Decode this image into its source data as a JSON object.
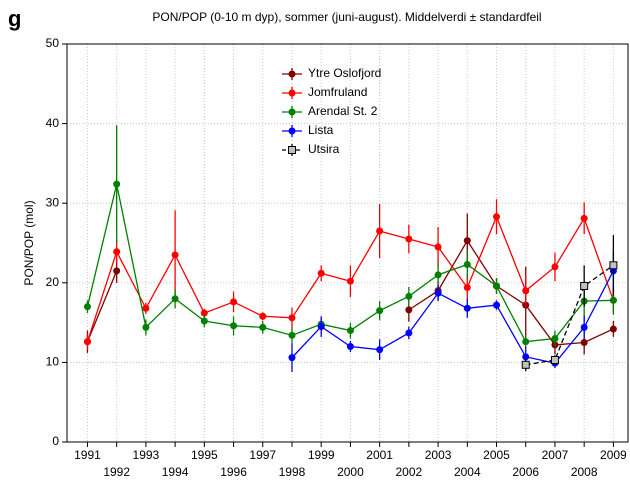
{
  "panel_label": "g",
  "chart_data": {
    "type": "line",
    "title": "PON/POP (0-10 m dyp), sommer (juni-august). Middelverdi ± standardfeil",
    "y_label": "PON/POP (mol)",
    "x": [
      1991,
      1992,
      1993,
      1994,
      1995,
      1996,
      1997,
      1998,
      1999,
      2000,
      2001,
      2002,
      2003,
      2004,
      2005,
      2006,
      2007,
      2008,
      2009
    ],
    "xlim": [
      1990.3,
      2009.5
    ],
    "xticks": [
      1991,
      1992,
      1993,
      1994,
      1995,
      1996,
      1997,
      1998,
      1999,
      2000,
      2001,
      2002,
      2003,
      2004,
      2005,
      2006,
      2007,
      2008,
      2009
    ],
    "ylim": [
      0,
      50
    ],
    "yticks": [
      0,
      10,
      20,
      30,
      40,
      50
    ],
    "grid": true,
    "legend": "top",
    "series": [
      {
        "name": "Ytre Oslofjord",
        "color": "#800000",
        "marker": "circle",
        "dashed": false,
        "values": [
          12.6,
          21.5,
          null,
          null,
          null,
          null,
          null,
          null,
          null,
          null,
          null,
          16.6,
          19.0,
          25.3,
          19.6,
          17.2,
          12.2,
          12.5,
          14.2
        ],
        "errors": [
          1.4,
          1.5,
          null,
          null,
          null,
          null,
          null,
          null,
          null,
          null,
          null,
          1.5,
          1.2,
          3.4,
          1.0,
          4.8,
          1.2,
          1.5,
          1.0
        ]
      },
      {
        "name": "Jomfruland",
        "color": "#ff0000",
        "marker": "circle",
        "dashed": false,
        "values": [
          12.6,
          23.9,
          16.8,
          23.5,
          16.2,
          17.6,
          15.8,
          15.6,
          21.2,
          20.2,
          26.5,
          25.5,
          24.5,
          19.4,
          28.3,
          19.0,
          22.0,
          28.1,
          17.8
        ],
        "errors": [
          1.0,
          1.5,
          0.7,
          5.6,
          0.5,
          1.3,
          0.5,
          1.3,
          1.0,
          2.0,
          3.4,
          1.8,
          2.5,
          1.5,
          2.2,
          2.0,
          1.8,
          2.0,
          1.5
        ]
      },
      {
        "name": "Arendal St. 2",
        "color": "#008000",
        "marker": "circle",
        "dashed": false,
        "values": [
          17.0,
          32.4,
          14.4,
          18.0,
          15.2,
          14.6,
          14.4,
          13.4,
          14.8,
          14.0,
          16.5,
          18.3,
          21.0,
          22.3,
          19.6,
          12.6,
          13.0,
          17.7,
          17.8
        ],
        "errors": [
          0.8,
          7.4,
          1.0,
          1.2,
          0.8,
          1.2,
          0.8,
          1.0,
          0.8,
          1.0,
          1.2,
          1.2,
          1.5,
          1.8,
          1.0,
          0.8,
          1.0,
          2.5,
          1.8
        ]
      },
      {
        "name": "Lista",
        "color": "#0000ff",
        "marker": "circle",
        "dashed": false,
        "values": [
          null,
          null,
          null,
          null,
          null,
          null,
          null,
          10.6,
          14.5,
          12.0,
          11.6,
          13.7,
          18.7,
          16.8,
          17.2,
          10.7,
          9.9,
          14.4,
          21.5
        ],
        "errors": [
          null,
          null,
          null,
          null,
          null,
          null,
          null,
          1.8,
          1.3,
          0.7,
          1.3,
          0.8,
          1.0,
          1.2,
          0.6,
          1.2,
          0.6,
          1.5,
          2.5
        ]
      },
      {
        "name": "Utsira",
        "color": "#000000",
        "marker": "square",
        "dashed": true,
        "values": [
          null,
          null,
          null,
          null,
          null,
          null,
          null,
          null,
          null,
          null,
          null,
          null,
          null,
          null,
          null,
          9.7,
          10.3,
          19.6,
          22.2
        ],
        "errors": [
          null,
          null,
          null,
          null,
          null,
          null,
          null,
          null,
          null,
          null,
          null,
          null,
          null,
          null,
          null,
          0.8,
          0.6,
          2.6,
          3.8
        ]
      }
    ]
  }
}
